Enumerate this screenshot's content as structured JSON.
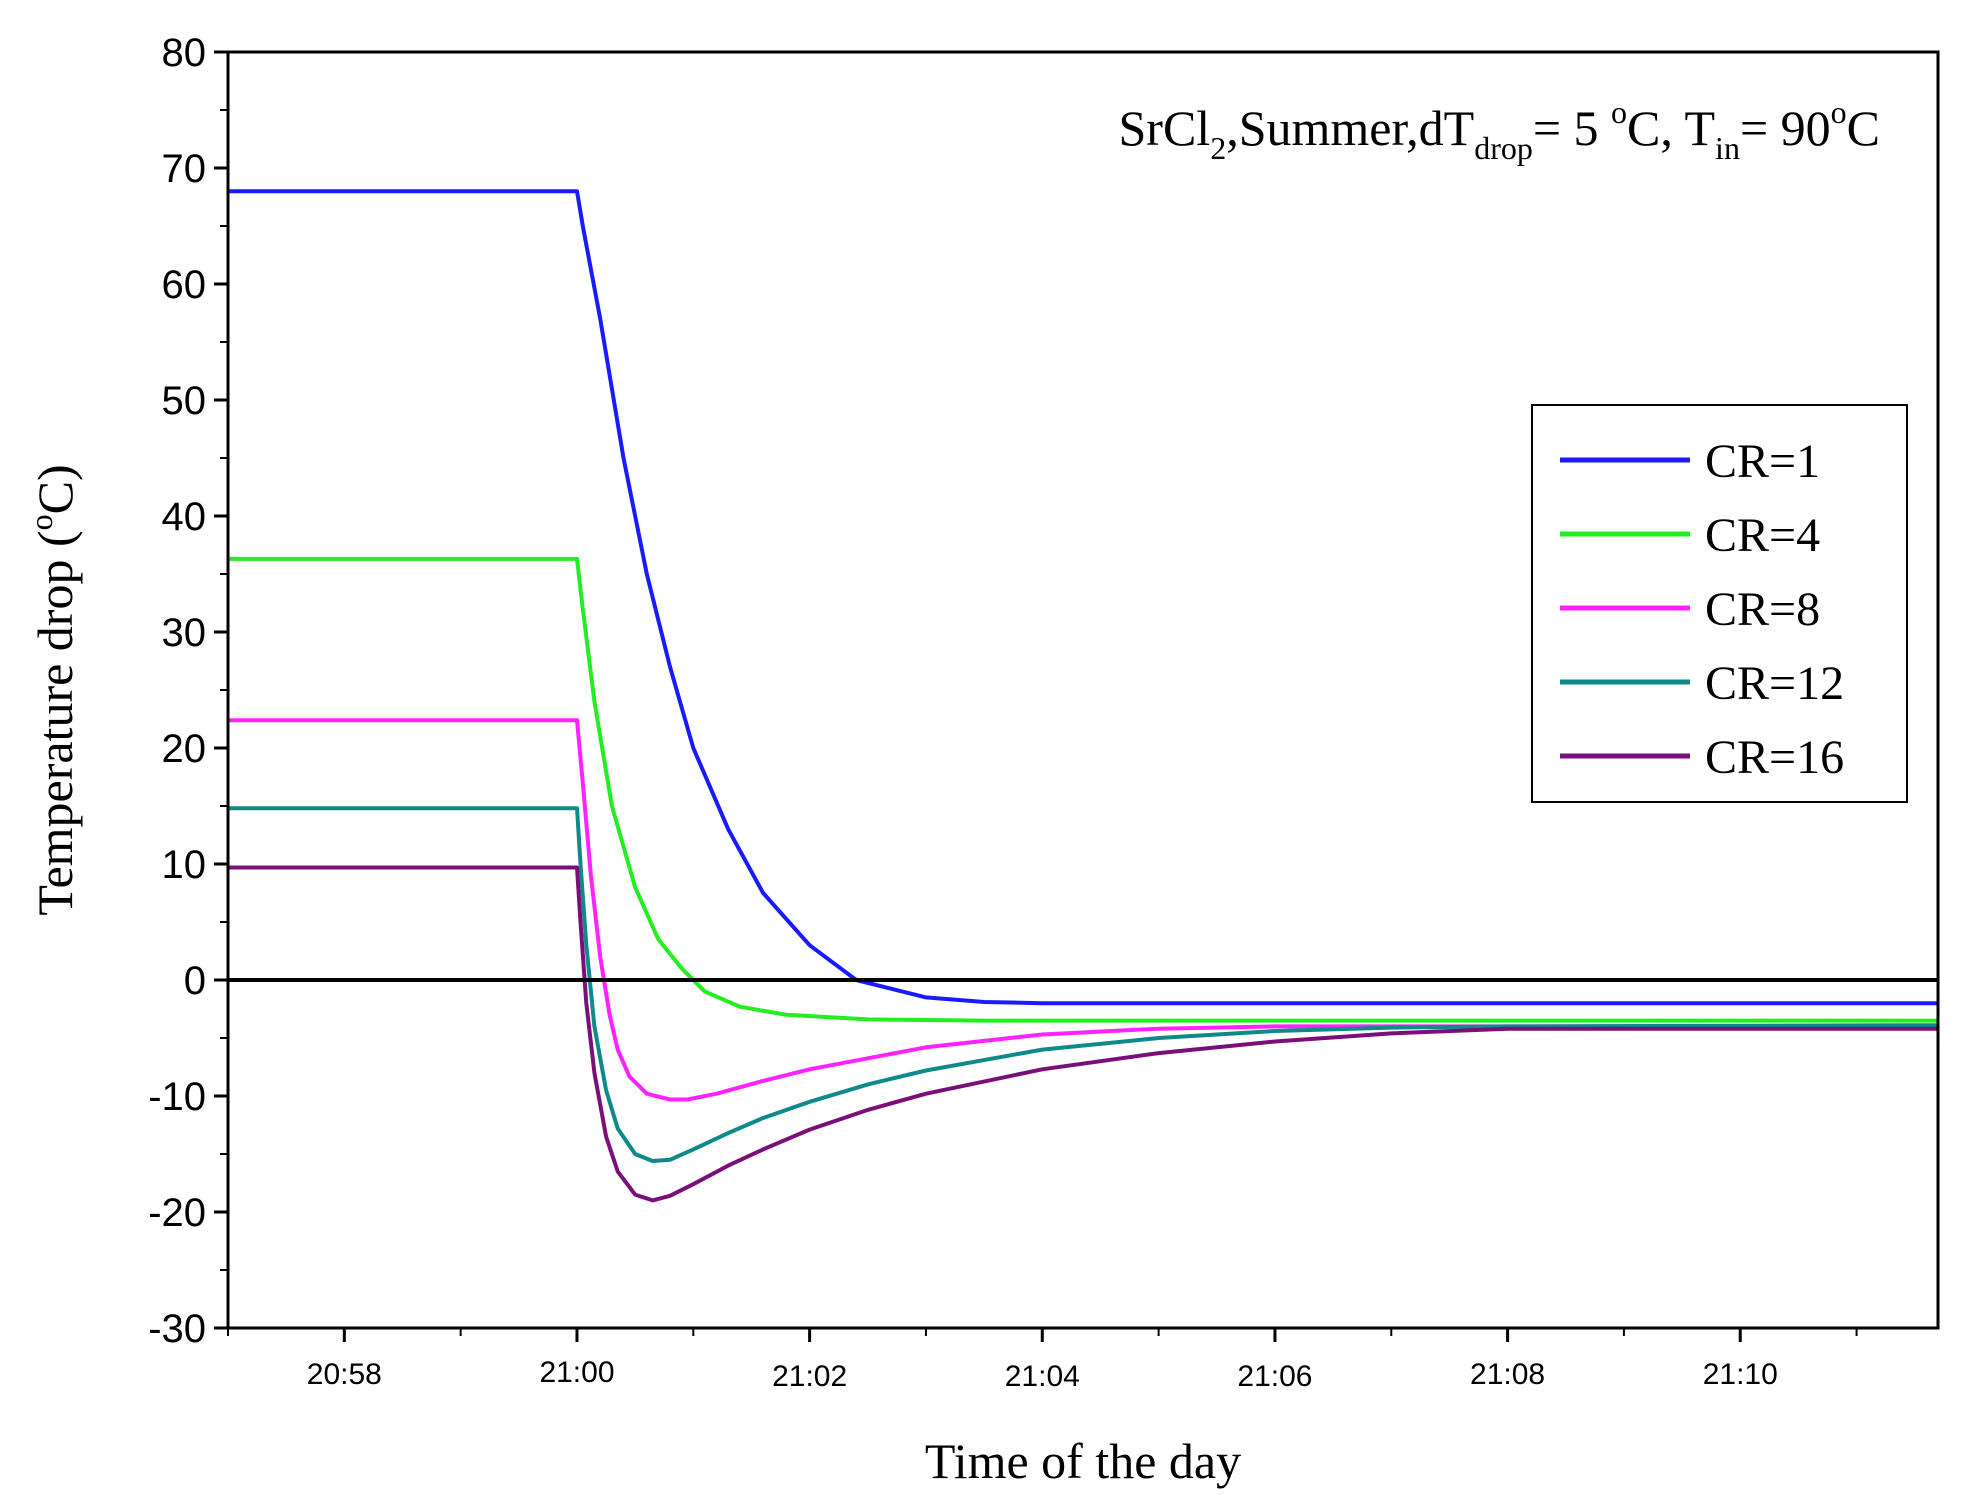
{
  "chart_data": {
    "type": "line",
    "title": "",
    "annotation": {
      "prefix": "SrCl",
      "sub1": "2",
      "mid": ",Summer,dT",
      "sub2": "drop",
      "eq1": "= 5 ",
      "sup1": "o",
      "mid2": "C, T",
      "sub3": "in",
      "eq2": "= 90",
      "sup2": "o",
      "end": "C"
    },
    "xlabel": "Time of the day",
    "ylabel": "Temperature drop (°C)",
    "ylabel_parts": {
      "pre": "Temperature drop (",
      "sup": "o",
      "post": "C)"
    },
    "x_unit": "minutes relative to 21:00",
    "xlim": [
      -3.0,
      11.7
    ],
    "ylim": [
      -30,
      80
    ],
    "x_ticks": [
      {
        "value": -2,
        "label": "20:58"
      },
      {
        "value": 0,
        "label": "21:00"
      },
      {
        "value": 2,
        "label": "21:02"
      },
      {
        "value": 4,
        "label": "21:04"
      },
      {
        "value": 6,
        "label": "21:06"
      },
      {
        "value": 8,
        "label": "21:08"
      },
      {
        "value": 10,
        "label": "21:10"
      }
    ],
    "y_ticks": [
      -30,
      -20,
      -10,
      0,
      10,
      20,
      30,
      40,
      50,
      60,
      70,
      80
    ],
    "reference_line": {
      "y": 0,
      "color": "#000000"
    },
    "legend_position": "right",
    "series": [
      {
        "name": "CR=1",
        "color": "#1a1aff",
        "x": [
          -3.0,
          0.0,
          0.05,
          0.2,
          0.4,
          0.6,
          0.8,
          1.0,
          1.3,
          1.6,
          2.0,
          2.4,
          3.0,
          3.5,
          4.0,
          5.0,
          6.0,
          8.0,
          11.7
        ],
        "y": [
          68.0,
          68.0,
          65.0,
          57.0,
          45.0,
          35.0,
          27.0,
          20.0,
          13.0,
          7.5,
          3.0,
          0.0,
          -1.5,
          -1.9,
          -2.0,
          -2.0,
          -2.0,
          -2.0,
          -2.0
        ]
      },
      {
        "name": "CR=4",
        "color": "#22ee22",
        "x": [
          -3.0,
          0.0,
          0.05,
          0.15,
          0.3,
          0.5,
          0.7,
          0.9,
          1.1,
          1.4,
          1.8,
          2.5,
          3.5,
          5.0,
          8.0,
          11.7
        ],
        "y": [
          36.3,
          36.3,
          32.0,
          24.0,
          15.0,
          8.0,
          3.5,
          1.0,
          -1.0,
          -2.3,
          -3.0,
          -3.4,
          -3.5,
          -3.5,
          -3.5,
          -3.5
        ]
      },
      {
        "name": "CR=8",
        "color": "#ff22ff",
        "x": [
          -3.0,
          0.0,
          0.05,
          0.12,
          0.2,
          0.28,
          0.35,
          0.45,
          0.6,
          0.8,
          0.95,
          1.2,
          1.6,
          2.0,
          3.0,
          4.0,
          5.0,
          6.0,
          7.0,
          8.0,
          11.7
        ],
        "y": [
          22.4,
          22.4,
          17.0,
          9.0,
          2.0,
          -3.0,
          -6.0,
          -8.3,
          -9.8,
          -10.3,
          -10.3,
          -9.8,
          -8.7,
          -7.7,
          -5.8,
          -4.7,
          -4.2,
          -4.0,
          -4.0,
          -4.0,
          -4.0
        ]
      },
      {
        "name": "CR=12",
        "color": "#0e8a8a",
        "x": [
          -3.0,
          0.0,
          0.03,
          0.08,
          0.15,
          0.25,
          0.35,
          0.5,
          0.65,
          0.8,
          1.0,
          1.3,
          1.6,
          2.0,
          2.5,
          3.0,
          4.0,
          5.0,
          6.0,
          7.0,
          8.0,
          11.7
        ],
        "y": [
          14.8,
          14.8,
          10.0,
          3.0,
          -4.0,
          -9.5,
          -12.8,
          -15.0,
          -15.6,
          -15.5,
          -14.6,
          -13.2,
          -11.9,
          -10.5,
          -9.0,
          -7.8,
          -6.0,
          -5.0,
          -4.4,
          -4.1,
          -4.0,
          -3.9
        ]
      },
      {
        "name": "CR=16",
        "color": "#7a0f7a",
        "x": [
          -3.0,
          0.0,
          0.03,
          0.08,
          0.15,
          0.25,
          0.35,
          0.5,
          0.65,
          0.8,
          1.0,
          1.3,
          1.6,
          2.0,
          2.5,
          3.0,
          4.0,
          5.0,
          6.0,
          7.0,
          8.0,
          11.7
        ],
        "y": [
          9.7,
          9.7,
          5.0,
          -2.0,
          -8.0,
          -13.5,
          -16.5,
          -18.5,
          -19.0,
          -18.6,
          -17.6,
          -16.0,
          -14.6,
          -12.9,
          -11.2,
          -9.8,
          -7.7,
          -6.3,
          -5.3,
          -4.6,
          -4.2,
          -4.2
        ]
      }
    ]
  }
}
